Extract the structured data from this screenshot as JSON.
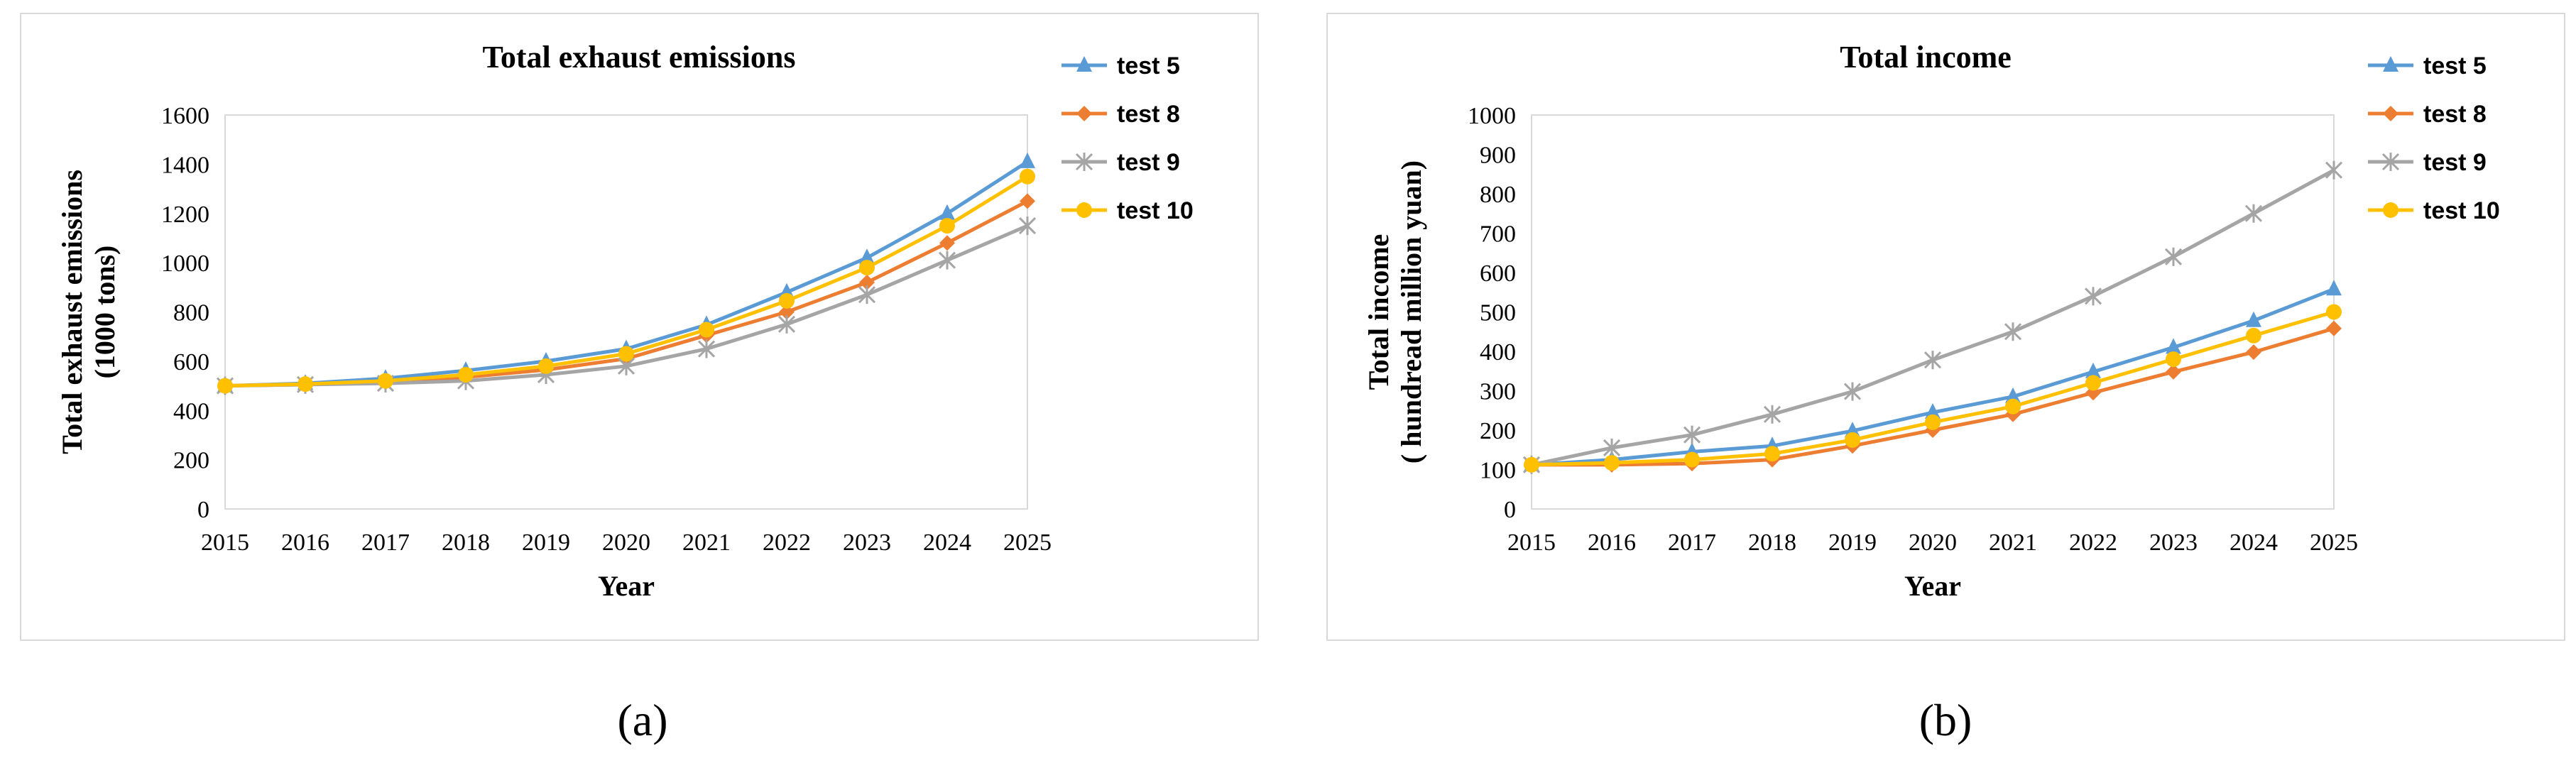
{
  "chart_data": [
    {
      "type": "line",
      "title": "Total exhaust emissions",
      "xlabel": "Year",
      "ylabel": [
        "Total exhaust emissions",
        "(1000 tons)"
      ],
      "ylim": [
        0,
        1600
      ],
      "yticks": [
        0,
        200,
        400,
        600,
        800,
        1000,
        1200,
        1400,
        1600
      ],
      "categories": [
        "2015",
        "2016",
        "2017",
        "2018",
        "2019",
        "2020",
        "2021",
        "2022",
        "2023",
        "2024",
        "2025"
      ],
      "legend_position": "right",
      "series": [
        {
          "name": "test 5",
          "color": "#5B9BD5",
          "marker": "triangle",
          "values": [
            500,
            510,
            530,
            562,
            600,
            650,
            748,
            880,
            1020,
            1200,
            1410
          ]
        },
        {
          "name": "test 8",
          "color": "#ED7D31",
          "marker": "diamond",
          "values": [
            500,
            505,
            515,
            535,
            565,
            610,
            705,
            800,
            920,
            1080,
            1250
          ]
        },
        {
          "name": "test 9",
          "color": "#A5A5A5",
          "marker": "star",
          "values": [
            500,
            505,
            510,
            520,
            545,
            580,
            650,
            750,
            870,
            1010,
            1150
          ]
        },
        {
          "name": "test 10",
          "color": "#FFC000",
          "marker": "circle",
          "values": [
            500,
            507,
            520,
            545,
            580,
            630,
            728,
            845,
            980,
            1150,
            1350
          ]
        }
      ]
    },
    {
      "type": "line",
      "title": "Total income",
      "xlabel": "Year",
      "ylabel": [
        "Total income",
        "( hundread million yuan)"
      ],
      "ylim": [
        0,
        1000
      ],
      "yticks": [
        0,
        100,
        200,
        300,
        400,
        500,
        600,
        700,
        800,
        900,
        1000
      ],
      "categories": [
        "2015",
        "2016",
        "2017",
        "2018",
        "2019",
        "2020",
        "2021",
        "2022",
        "2023",
        "2024",
        "2025"
      ],
      "legend_position": "right",
      "series": [
        {
          "name": "test 5",
          "color": "#5B9BD5",
          "marker": "triangle",
          "values": [
            112,
            125,
            145,
            160,
            198,
            245,
            285,
            348,
            410,
            478,
            558
          ]
        },
        {
          "name": "test 8",
          "color": "#ED7D31",
          "marker": "diamond",
          "values": [
            112,
            112,
            115,
            125,
            160,
            200,
            240,
            295,
            348,
            398,
            458
          ]
        },
        {
          "name": "test 9",
          "color": "#A5A5A5",
          "marker": "star",
          "values": [
            112,
            155,
            188,
            240,
            298,
            378,
            450,
            540,
            640,
            750,
            860
          ]
        },
        {
          "name": "test 10",
          "color": "#FFC000",
          "marker": "circle",
          "values": [
            112,
            117,
            125,
            140,
            175,
            220,
            260,
            320,
            380,
            440,
            500
          ]
        }
      ]
    }
  ],
  "captions": [
    "(a)",
    "(b)"
  ]
}
